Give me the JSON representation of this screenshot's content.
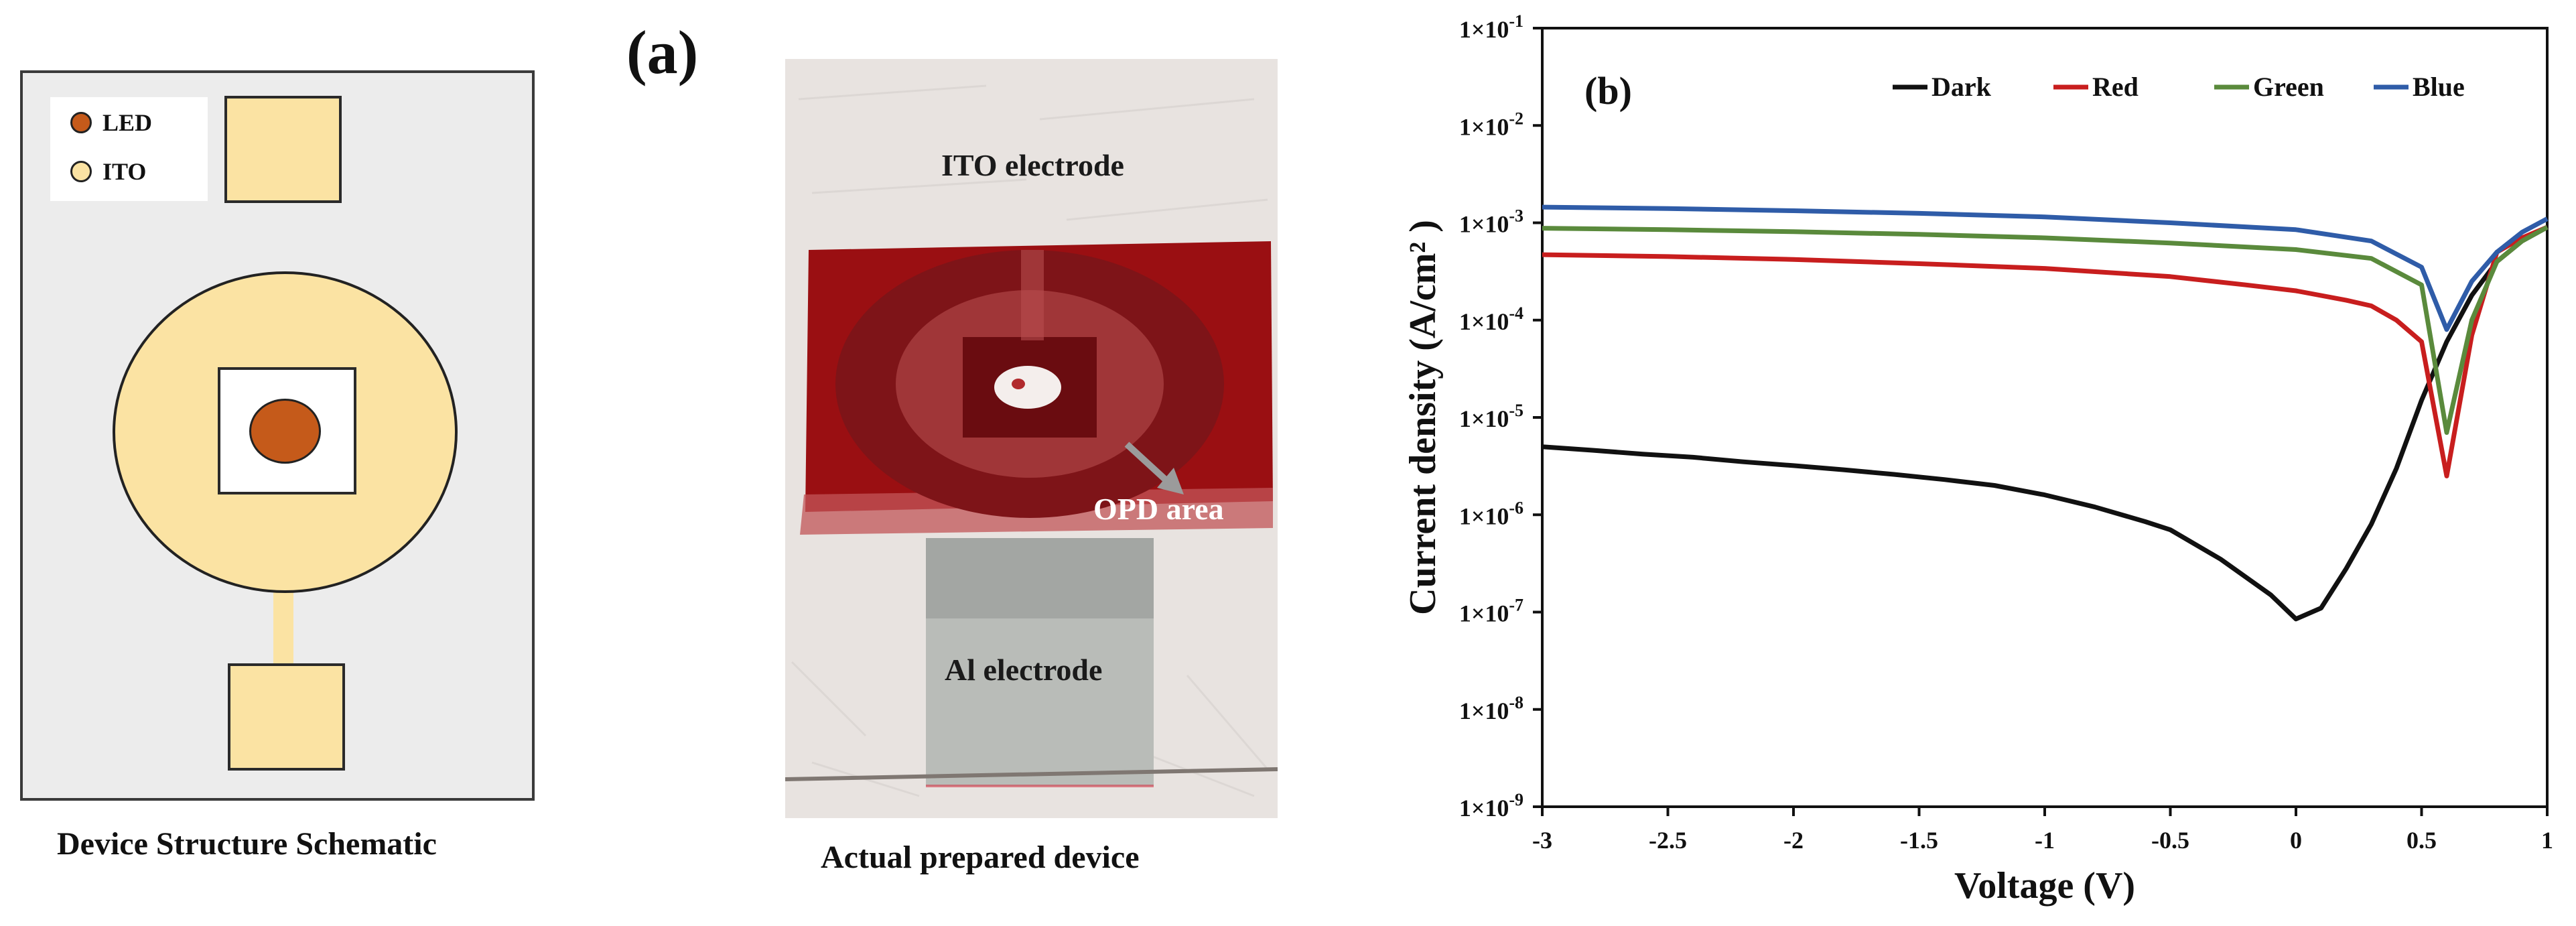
{
  "schematic": {
    "legend": [
      {
        "label": "LED",
        "color": "#c55a1a"
      },
      {
        "label": "ITO",
        "color": "#fbe3a3"
      }
    ],
    "caption": "Device Structure Schematic"
  },
  "photo": {
    "panel_label": "(a)",
    "ito_label": "ITO electrode",
    "opd_label": "OPD area",
    "al_label": "Al electrode",
    "caption": "Actual prepared device"
  },
  "chart_data": {
    "type": "line",
    "panel_label": "(b)",
    "xlabel": "Voltage (V)",
    "ylabel": "Current density  (A/cm² )",
    "xlim": [
      -3,
      1
    ],
    "ylim_log10": [
      -9,
      -1
    ],
    "y_scale": "log",
    "x_ticks": [
      "-3",
      "-2.5",
      "-2",
      "-1.5",
      "-1",
      "-0.5",
      "0",
      "0.5",
      "1"
    ],
    "y_ticks": [
      {
        "base": "1×10",
        "exp": "-9"
      },
      {
        "base": "1×10",
        "exp": "-8"
      },
      {
        "base": "1×10",
        "exp": "-7"
      },
      {
        "base": "1×10",
        "exp": "-6"
      },
      {
        "base": "1×10",
        "exp": "-5"
      },
      {
        "base": "1×10",
        "exp": "-4"
      },
      {
        "base": "1×10",
        "exp": "-3"
      },
      {
        "base": "1×10",
        "exp": "-2"
      },
      {
        "base": "1×10",
        "exp": "-1"
      }
    ],
    "legend_position": "top",
    "series": [
      {
        "name": "Dark",
        "color": "#111111",
        "points": [
          [
            -3,
            5e-06
          ],
          [
            -2.8,
            4.6e-06
          ],
          [
            -2.6,
            4.2e-06
          ],
          [
            -2.4,
            3.9e-06
          ],
          [
            -2.2,
            3.5e-06
          ],
          [
            -2,
            3.2e-06
          ],
          [
            -1.8,
            2.9e-06
          ],
          [
            -1.6,
            2.6e-06
          ],
          [
            -1.4,
            2.3e-06
          ],
          [
            -1.2,
            2e-06
          ],
          [
            -1,
            1.6e-06
          ],
          [
            -0.8,
            1.2e-06
          ],
          [
            -0.6,
            8.5e-07
          ],
          [
            -0.5,
            7e-07
          ],
          [
            -0.3,
            3.5e-07
          ],
          [
            -0.1,
            1.5e-07
          ],
          [
            0,
            8.5e-08
          ],
          [
            0.1,
            1.1e-07
          ],
          [
            0.2,
            2.8e-07
          ],
          [
            0.3,
            8e-07
          ],
          [
            0.4,
            3e-06
          ],
          [
            0.5,
            1.5e-05
          ],
          [
            0.6,
            6e-05
          ],
          [
            0.7,
            0.00018
          ],
          [
            0.8,
            0.0004
          ],
          [
            0.9,
            0.00065
          ],
          [
            1,
            0.0009
          ]
        ]
      },
      {
        "name": "Red",
        "color": "#c81e1e",
        "points": [
          [
            -3,
            0.00047
          ],
          [
            -2.5,
            0.00045
          ],
          [
            -2,
            0.00042
          ],
          [
            -1.5,
            0.00038
          ],
          [
            -1,
            0.00034
          ],
          [
            -0.5,
            0.00028
          ],
          [
            -0.2,
            0.00023
          ],
          [
            0,
            0.0002
          ],
          [
            0.2,
            0.00016
          ],
          [
            0.3,
            0.00014
          ],
          [
            0.4,
            0.0001
          ],
          [
            0.5,
            6e-05
          ],
          [
            0.6,
            2.5e-06
          ],
          [
            0.7,
            7e-05
          ],
          [
            0.8,
            0.0005
          ],
          [
            0.9,
            0.0007
          ],
          [
            1,
            0.0009
          ]
        ]
      },
      {
        "name": "Green",
        "color": "#5a8a3c",
        "points": [
          [
            -3,
            0.00088
          ],
          [
            -2.5,
            0.00085
          ],
          [
            -2,
            0.00081
          ],
          [
            -1.5,
            0.00076
          ],
          [
            -1,
            0.0007
          ],
          [
            -0.5,
            0.00062
          ],
          [
            0,
            0.00053
          ],
          [
            0.3,
            0.00043
          ],
          [
            0.5,
            0.00023
          ],
          [
            0.6,
            7e-06
          ],
          [
            0.7,
            0.0001
          ],
          [
            0.8,
            0.0004
          ],
          [
            0.9,
            0.00065
          ],
          [
            1,
            0.0009
          ]
        ]
      },
      {
        "name": "Blue",
        "color": "#2f5ca8",
        "points": [
          [
            -3,
            0.00145
          ],
          [
            -2.5,
            0.0014
          ],
          [
            -2,
            0.00133
          ],
          [
            -1.5,
            0.00125
          ],
          [
            -1,
            0.00115
          ],
          [
            -0.5,
            0.001
          ],
          [
            0,
            0.00085
          ],
          [
            0.3,
            0.00065
          ],
          [
            0.5,
            0.00035
          ],
          [
            0.6,
            8e-05
          ],
          [
            0.7,
            0.00025
          ],
          [
            0.8,
            0.0005
          ],
          [
            0.9,
            0.0008
          ],
          [
            1,
            0.0011
          ]
        ]
      }
    ]
  }
}
